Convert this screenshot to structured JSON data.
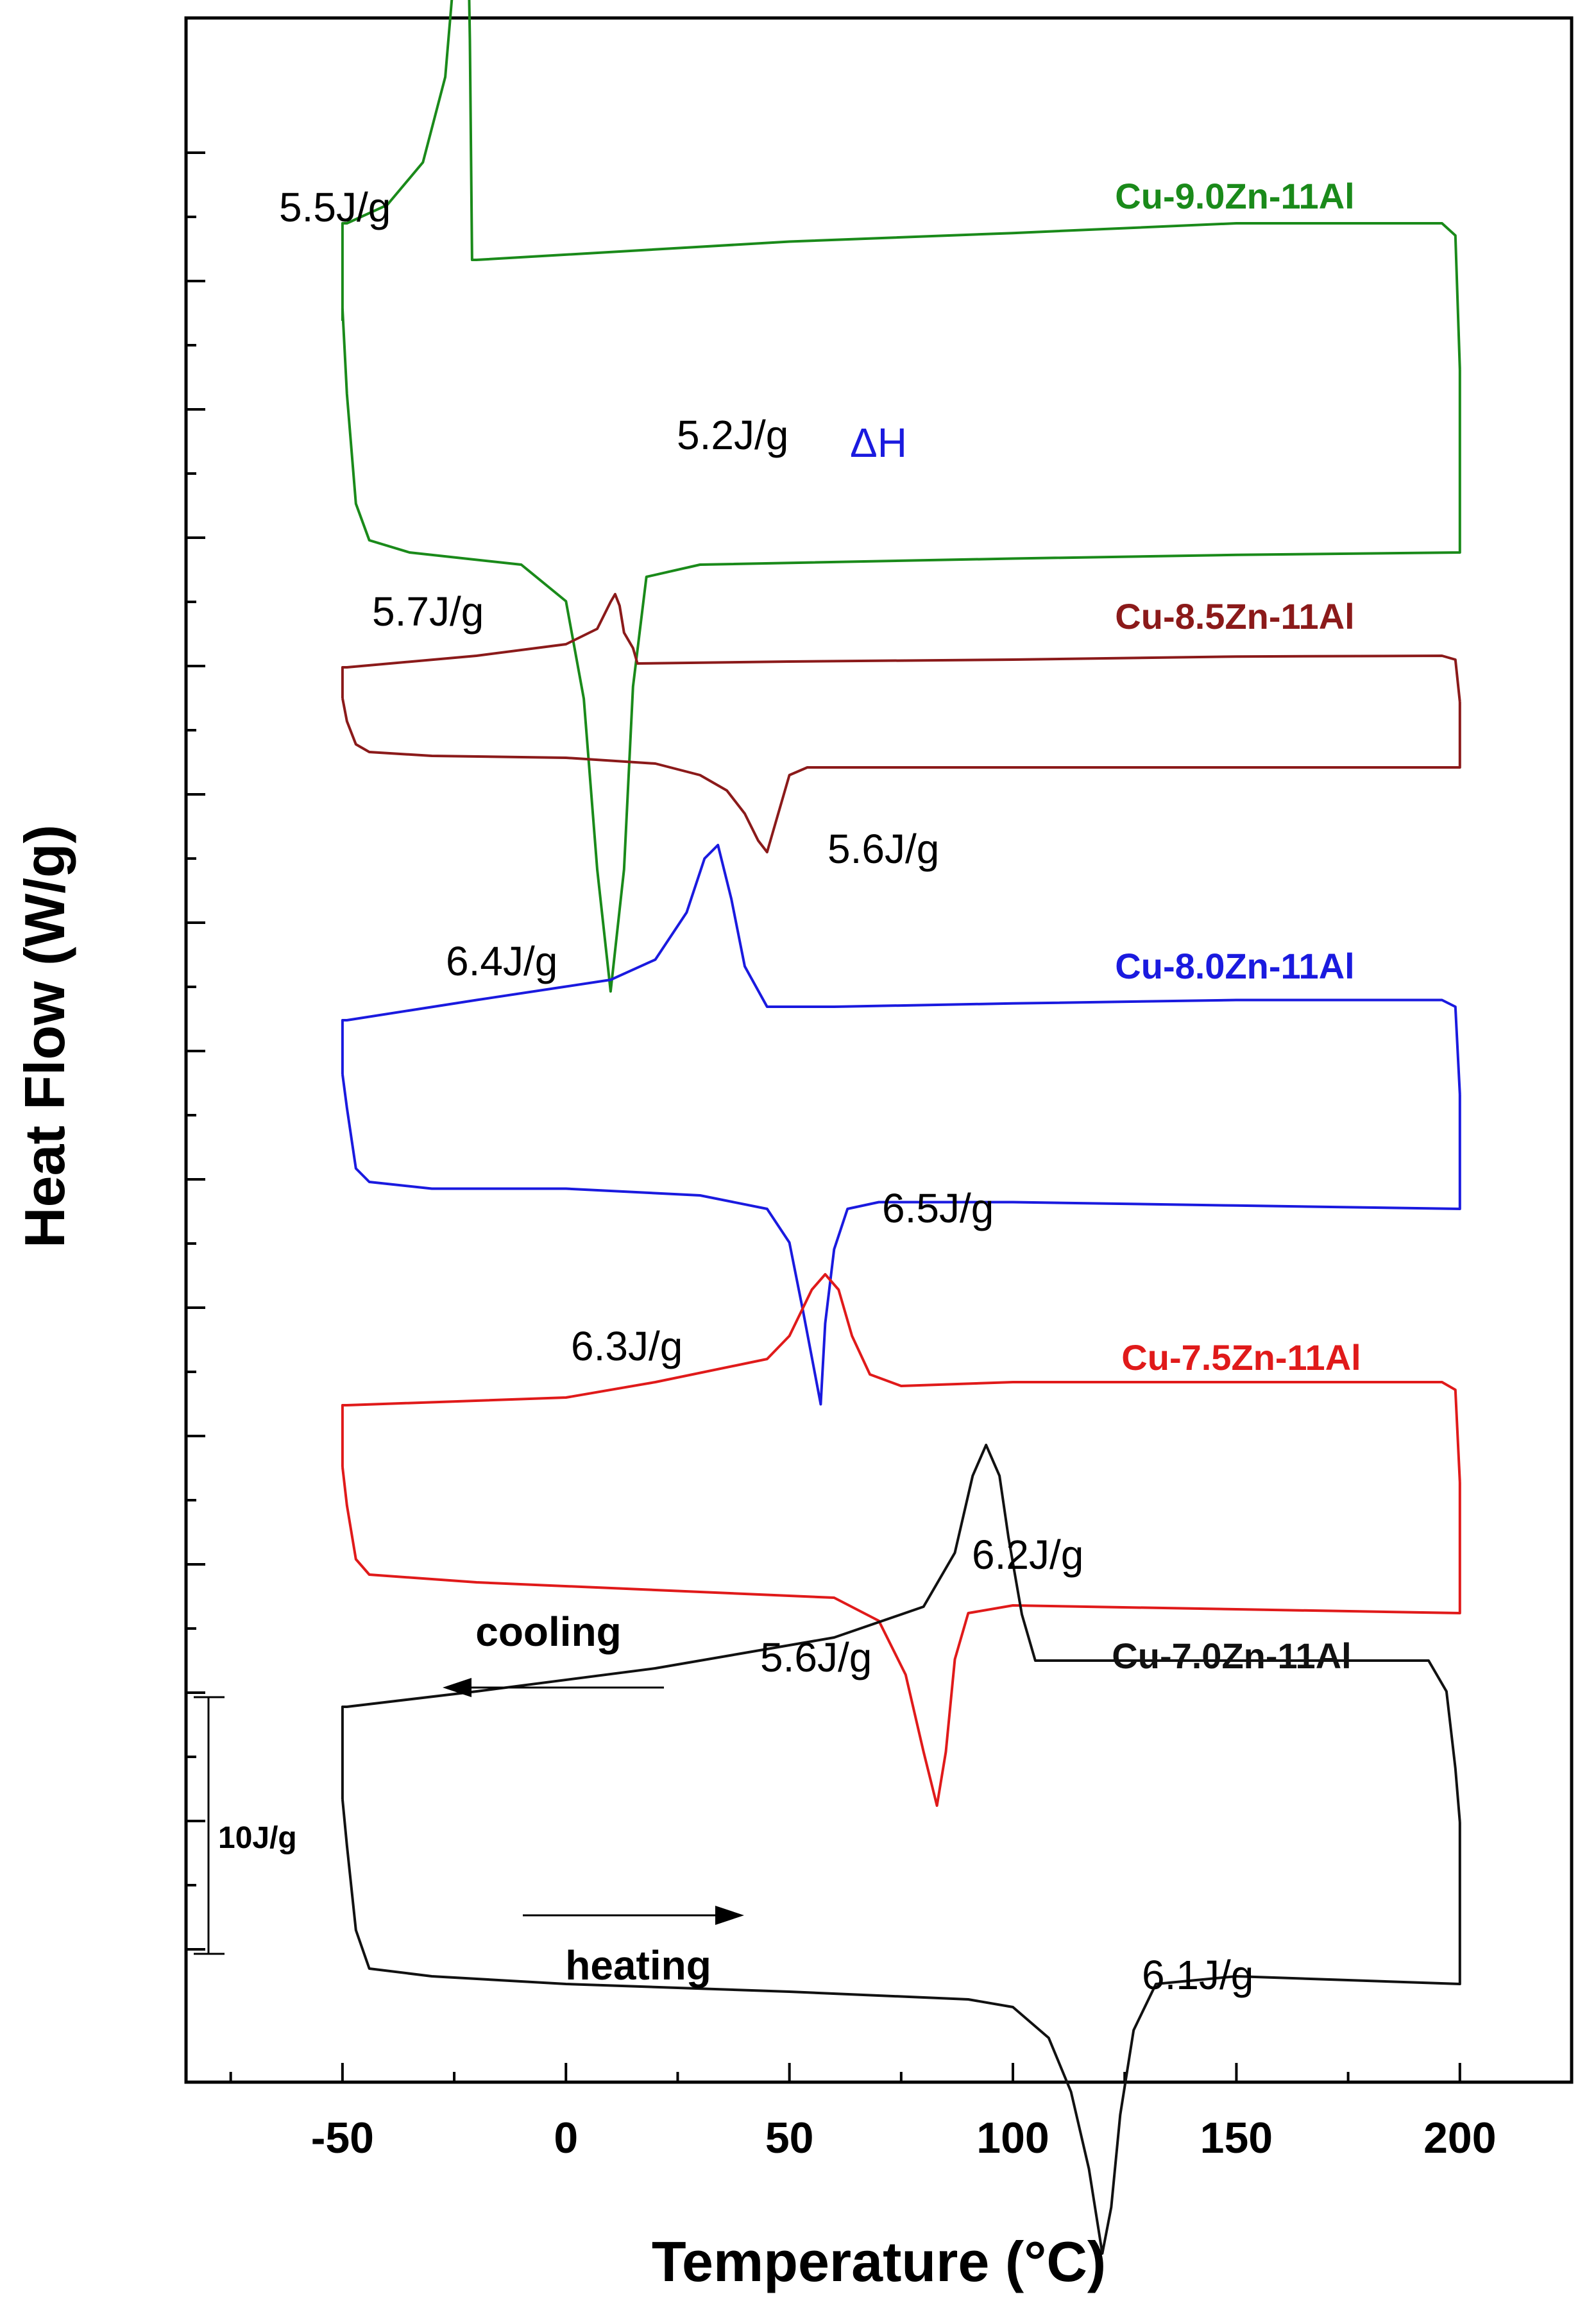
{
  "chart_data": {
    "type": "line",
    "xlabel": "Temperature (°C)",
    "ylabel": "Heat Flow (W/g)",
    "xlim": [
      -85,
      225
    ],
    "xticks": [
      -50,
      0,
      50,
      100,
      150,
      200
    ],
    "x_minor_step": 25,
    "scale_bar_label": "10J/g",
    "delta_label": "ΔH",
    "cooling_label": "cooling",
    "heating_label": "heating",
    "series": [
      {
        "name": "Cu-9.0Zn-11Al",
        "color": "#1a8a1a",
        "cooling_enthalpy": "5.5J/g",
        "heating_enthalpy": "5.2J/g",
        "cooling_points": [
          [
            200,
            -0.9
          ],
          [
            199,
            0.2
          ],
          [
            196,
            0.3
          ],
          [
            150,
            0.3
          ],
          [
            100,
            0.22
          ],
          [
            50,
            0.15
          ],
          [
            -20,
            0.0
          ],
          [
            -21,
            0.0
          ],
          [
            -21.5,
            1.8
          ],
          [
            -22.5,
            4.0
          ],
          [
            -24,
            2.8
          ],
          [
            -27,
            1.5
          ],
          [
            -32,
            0.8
          ],
          [
            -40,
            0.45
          ],
          [
            -49,
            0.3
          ],
          [
            -50,
            0.3
          ],
          [
            -50,
            -0.5
          ]
        ],
        "heating_points": [
          [
            -50,
            -0.4
          ],
          [
            -49,
            -1.1
          ],
          [
            -47,
            -2.0
          ],
          [
            -44,
            -2.3
          ],
          [
            -35,
            -2.4
          ],
          [
            -10,
            -2.5
          ],
          [
            0,
            -2.8
          ],
          [
            4,
            -3.6
          ],
          [
            7,
            -5.0
          ],
          [
            10,
            -6.0
          ],
          [
            13,
            -5.0
          ],
          [
            15,
            -3.5
          ],
          [
            18,
            -2.6
          ],
          [
            30,
            -2.5
          ],
          [
            100,
            -2.45
          ],
          [
            150,
            -2.42
          ],
          [
            200,
            -2.4
          ],
          [
            200,
            -0.9
          ]
        ]
      },
      {
        "name": "Cu-8.5Zn-11Al",
        "color": "#8b1a1a",
        "cooling_enthalpy": "5.7J/g",
        "heating_enthalpy": "5.6J/g",
        "cooling_points": [
          [
            200,
            -0.9
          ],
          [
            199,
            0.2
          ],
          [
            196,
            0.3
          ],
          [
            150,
            0.28
          ],
          [
            100,
            0.2
          ],
          [
            50,
            0.15
          ],
          [
            16,
            0.1
          ],
          [
            15,
            0.5
          ],
          [
            13,
            0.9
          ],
          [
            12,
            1.6
          ],
          [
            11,
            1.9
          ],
          [
            10,
            1.7
          ],
          [
            7,
            1.0
          ],
          [
            0,
            0.6
          ],
          [
            -20,
            0.3
          ],
          [
            -49,
            0.0
          ],
          [
            -50,
            0.0
          ],
          [
            -50,
            -0.8
          ]
        ],
        "heating_points": [
          [
            -50,
            -0.8
          ],
          [
            -49,
            -1.4
          ],
          [
            -47,
            -2.0
          ],
          [
            -44,
            -2.2
          ],
          [
            -30,
            -2.3
          ],
          [
            0,
            -2.35
          ],
          [
            20,
            -2.5
          ],
          [
            30,
            -2.8
          ],
          [
            36,
            -3.2
          ],
          [
            40,
            -3.8
          ],
          [
            43,
            -4.5
          ],
          [
            45,
            -4.8
          ],
          [
            47,
            -4.0
          ],
          [
            50,
            -2.8
          ],
          [
            54,
            -2.6
          ],
          [
            100,
            -2.6
          ],
          [
            150,
            -2.6
          ],
          [
            200,
            -2.6
          ],
          [
            200,
            -0.9
          ]
        ]
      },
      {
        "name": "Cu-8.0Zn-11Al",
        "color": "#1a1adf",
        "cooling_enthalpy": "6.4J/g",
        "heating_enthalpy": "6.5J/g",
        "cooling_points": [
          [
            200,
            -1.1
          ],
          [
            199,
            0.2
          ],
          [
            196,
            0.3
          ],
          [
            150,
            0.3
          ],
          [
            100,
            0.25
          ],
          [
            60,
            0.2
          ],
          [
            45,
            0.2
          ],
          [
            40,
            0.8
          ],
          [
            37,
            1.8
          ],
          [
            34,
            2.6
          ],
          [
            31,
            2.4
          ],
          [
            27,
            1.6
          ],
          [
            20,
            0.9
          ],
          [
            10,
            0.6
          ],
          [
            0,
            0.5
          ],
          [
            -20,
            0.3
          ],
          [
            -49,
            0.0
          ],
          [
            -50,
            0.0
          ],
          [
            -50,
            -0.8
          ]
        ],
        "heating_points": [
          [
            -50,
            -0.8
          ],
          [
            -49,
            -1.3
          ],
          [
            -47,
            -2.2
          ],
          [
            -44,
            -2.4
          ],
          [
            -30,
            -2.5
          ],
          [
            0,
            -2.5
          ],
          [
            30,
            -2.6
          ],
          [
            45,
            -2.8
          ],
          [
            50,
            -3.3
          ],
          [
            53,
            -4.3
          ],
          [
            55,
            -5.0
          ],
          [
            57,
            -5.7
          ],
          [
            58,
            -4.5
          ],
          [
            60,
            -3.4
          ],
          [
            63,
            -2.8
          ],
          [
            70,
            -2.7
          ],
          [
            100,
            -2.7
          ],
          [
            150,
            -2.75
          ],
          [
            200,
            -2.8
          ],
          [
            200,
            -1.1
          ]
        ]
      },
      {
        "name": "Cu-7.5Zn-11Al",
        "color": "#e01a1a",
        "cooling_enthalpy": "6.3J/g",
        "heating_enthalpy": "6.2J/g",
        "cooling_points": [
          [
            200,
            -1.0
          ],
          [
            199,
            0.2
          ],
          [
            196,
            0.3
          ],
          [
            150,
            0.3
          ],
          [
            100,
            0.3
          ],
          [
            75,
            0.25
          ],
          [
            68,
            0.4
          ],
          [
            64,
            0.9
          ],
          [
            61,
            1.5
          ],
          [
            58,
            1.7
          ],
          [
            55,
            1.5
          ],
          [
            50,
            0.9
          ],
          [
            45,
            0.6
          ],
          [
            20,
            0.3
          ],
          [
            0,
            0.1
          ],
          [
            -49,
            0.0
          ],
          [
            -50,
            0.0
          ],
          [
            -50,
            -0.8
          ]
        ],
        "heating_points": [
          [
            -50,
            -0.8
          ],
          [
            -49,
            -1.3
          ],
          [
            -47,
            -2.0
          ],
          [
            -44,
            -2.2
          ],
          [
            -20,
            -2.3
          ],
          [
            20,
            -2.4
          ],
          [
            60,
            -2.5
          ],
          [
            70,
            -2.8
          ],
          [
            76,
            -3.5
          ],
          [
            80,
            -4.5
          ],
          [
            83,
            -5.2
          ],
          [
            85,
            -4.5
          ],
          [
            87,
            -3.3
          ],
          [
            90,
            -2.7
          ],
          [
            100,
            -2.6
          ],
          [
            150,
            -2.65
          ],
          [
            200,
            -2.7
          ],
          [
            200,
            -1.0
          ]
        ]
      },
      {
        "name": "Cu-7.0Zn-11Al",
        "color": "#111111",
        "cooling_enthalpy": "5.6J/g",
        "heating_enthalpy": "6.1J/g",
        "cooling_points": [
          [
            200,
            -1.5
          ],
          [
            199,
            -0.8
          ],
          [
            197,
            0.2
          ],
          [
            193,
            0.6
          ],
          [
            150,
            0.6
          ],
          [
            105,
            0.6
          ],
          [
            102,
            1.2
          ],
          [
            99,
            2.2
          ],
          [
            97,
            3.0
          ],
          [
            94,
            3.4
          ],
          [
            91,
            3.0
          ],
          [
            87,
            2.0
          ],
          [
            80,
            1.3
          ],
          [
            60,
            0.9
          ],
          [
            20,
            0.5
          ],
          [
            -20,
            0.2
          ],
          [
            -49,
            0.0
          ],
          [
            -50,
            0.0
          ],
          [
            -50,
            -1.2
          ]
        ],
        "heating_points": [
          [
            -50,
            -1.2
          ],
          [
            -49,
            -1.8
          ],
          [
            -47,
            -2.9
          ],
          [
            -44,
            -3.4
          ],
          [
            -30,
            -3.5
          ],
          [
            0,
            -3.6
          ],
          [
            50,
            -3.7
          ],
          [
            90,
            -3.8
          ],
          [
            100,
            -3.9
          ],
          [
            108,
            -4.3
          ],
          [
            113,
            -5.0
          ],
          [
            117,
            -6.0
          ],
          [
            120,
            -7.1
          ],
          [
            122,
            -6.5
          ],
          [
            124,
            -5.3
          ],
          [
            127,
            -4.2
          ],
          [
            132,
            -3.6
          ],
          [
            150,
            -3.5
          ],
          [
            200,
            -3.6
          ],
          [
            200,
            -1.5
          ]
        ]
      }
    ]
  }
}
